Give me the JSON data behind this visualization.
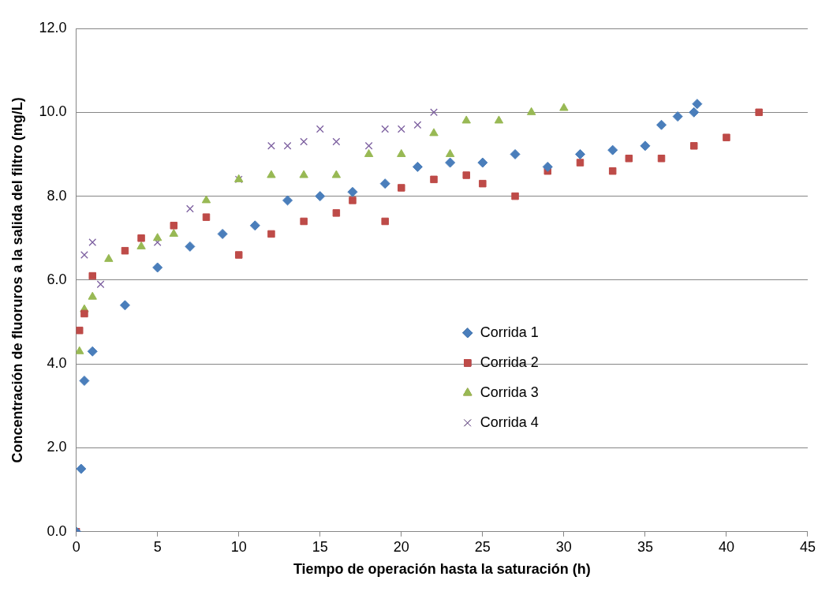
{
  "chart_data": {
    "type": "scatter",
    "xlabel": "Tiempo de operación hasta la saturación (h)",
    "ylabel": "Concentración de fluoruros a la salida del filtro (mg/L)",
    "xlim": [
      0,
      45
    ],
    "xticks": [
      0,
      5,
      10,
      15,
      20,
      25,
      30,
      35,
      40,
      45
    ],
    "ylim": [
      0,
      12
    ],
    "yticks": [
      {
        "value": 0,
        "label": "0.0"
      },
      {
        "value": 2,
        "label": "2.0"
      },
      {
        "value": 4,
        "label": "4.0"
      },
      {
        "value": 6,
        "label": "6.0"
      },
      {
        "value": 8,
        "label": "8.0"
      },
      {
        "value": 10,
        "label": "10.0"
      },
      {
        "value": 12,
        "label": "12.0"
      }
    ],
    "grid": "y",
    "legend": "right",
    "series": [
      {
        "name": "Corrida 1",
        "color": "#4a7ebb",
        "marker": "diamond",
        "x": [
          0,
          0.3,
          0.5,
          1,
          3,
          5,
          7,
          9,
          11,
          13,
          15,
          17,
          19,
          21,
          23,
          25,
          27,
          29,
          31,
          33,
          35,
          36,
          37,
          38,
          38.2
        ],
        "values": [
          0,
          1.5,
          3.6,
          4.3,
          5.4,
          6.3,
          6.8,
          7.1,
          7.3,
          7.9,
          8.0,
          8.1,
          8.3,
          8.7,
          8.8,
          8.8,
          9.0,
          8.7,
          9.0,
          9.1,
          9.2,
          9.7,
          9.9,
          10.0,
          10.2
        ]
      },
      {
        "name": "Corrida 2",
        "color": "#be4b48",
        "marker": "square",
        "x": [
          0,
          0.2,
          0.5,
          1,
          3,
          4,
          6,
          8,
          10,
          12,
          14,
          16,
          17,
          19,
          20,
          22,
          24,
          25,
          27,
          29,
          31,
          33,
          34,
          36,
          38,
          40,
          42
        ],
        "values": [
          0,
          4.8,
          5.2,
          6.1,
          6.7,
          7.0,
          7.3,
          7.5,
          6.6,
          7.1,
          7.4,
          7.6,
          7.9,
          7.4,
          8.2,
          8.4,
          8.5,
          8.3,
          8.0,
          8.6,
          8.8,
          8.6,
          8.9,
          8.9,
          9.2,
          9.4,
          10.0
        ]
      },
      {
        "name": "Corrida 3",
        "color": "#98b954",
        "marker": "triangle",
        "x": [
          0,
          0.2,
          0.5,
          1,
          2,
          4,
          5,
          6,
          8,
          10,
          12,
          14,
          16,
          18,
          20,
          22,
          23,
          24,
          26,
          28,
          30
        ],
        "values": [
          0,
          4.3,
          5.3,
          5.6,
          6.5,
          6.8,
          7.0,
          7.1,
          7.9,
          8.4,
          8.5,
          8.5,
          8.5,
          9.0,
          9.0,
          9.5,
          9.0,
          9.8,
          9.8,
          10.0,
          10.1
        ]
      },
      {
        "name": "Corrida 4",
        "color": "#7d60a0",
        "marker": "cross",
        "x": [
          0,
          0.5,
          1,
          1.5,
          5,
          7,
          10,
          12,
          13,
          14,
          15,
          16,
          18,
          19,
          20,
          21,
          22
        ],
        "values": [
          0,
          6.6,
          6.9,
          5.9,
          6.9,
          7.7,
          8.4,
          9.2,
          9.2,
          9.3,
          9.6,
          9.3,
          9.2,
          9.6,
          9.6,
          9.7,
          10.0
        ]
      }
    ]
  }
}
